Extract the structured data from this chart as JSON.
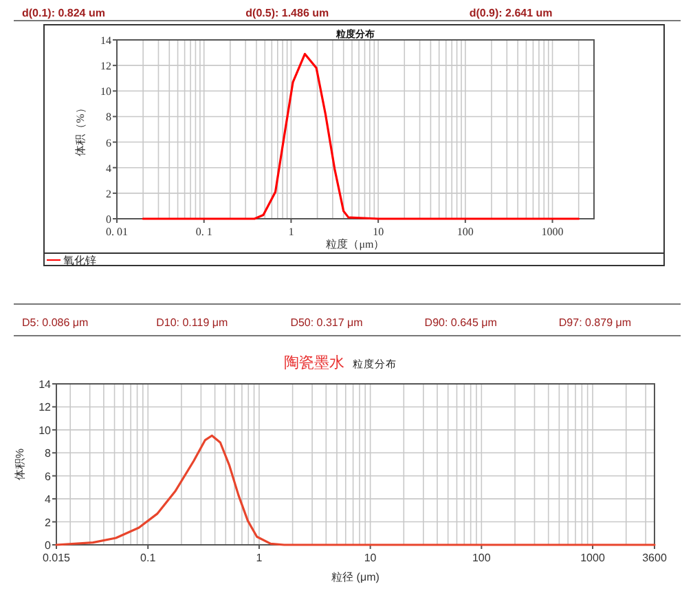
{
  "chart_data": [
    {
      "type": "line",
      "title": "粒度分布",
      "xlabel": "粒度（μm）",
      "ylabel": "体积（%）",
      "log": "x",
      "grid": true,
      "legend": "bottom left",
      "annotations": [
        "d(0.1): 0.824 um",
        "d(0.5): 1.486 um",
        "d(0.9): 2.641 um"
      ],
      "xlim": [
        0.01,
        3000
      ],
      "xticks": [
        {
          "value": 0.01,
          "label": "0. 01"
        },
        {
          "value": 0.1,
          "label": "0. 1"
        },
        1,
        10,
        100,
        1000
      ],
      "ylim": [
        0,
        14
      ],
      "yticks": [
        0,
        2,
        4,
        6,
        8,
        10,
        12,
        14
      ],
      "series": [
        {
          "name": "氧化锌",
          "color": "#ff0000",
          "x": [
            0.02,
            0.1,
            0.38,
            0.48,
            0.66,
            0.83,
            1.05,
            1.44,
            1.95,
            2.48,
            3.16,
            4.0,
            4.56,
            10,
            100,
            2000
          ],
          "values": [
            0,
            0,
            0,
            0.3,
            2.1,
            6.4,
            10.7,
            12.9,
            11.8,
            8.2,
            3.9,
            0.6,
            0.1,
            0,
            0,
            0
          ]
        }
      ]
    },
    {
      "type": "line",
      "title": "陶瓷墨水",
      "subtitle": "粒度分布",
      "xlabel": "粒径 (μm)",
      "ylabel": "体积%",
      "log": "x",
      "grid": true,
      "annotations": [
        "D5: 0.086 μm",
        "D10: 0.119 μm",
        "D50: 0.317 μm",
        "D90: 0.645 μm",
        "D97: 0.879 μm"
      ],
      "xlim": [
        0.015,
        3600
      ],
      "xticks": [
        0.015,
        0.1,
        1,
        10,
        100,
        1000,
        3600
      ],
      "ylim": [
        0,
        14
      ],
      "yticks": [
        0,
        2,
        4,
        6,
        8,
        10,
        12,
        14
      ],
      "series": [
        {
          "color": "#e8452c",
          "x": [
            0.015,
            0.032,
            0.0515,
            0.083,
            0.121,
            0.177,
            0.258,
            0.326,
            0.376,
            0.447,
            0.54,
            0.653,
            0.79,
            0.955,
            1.27,
            1.68,
            10,
            100,
            3600
          ],
          "values": [
            0,
            0.2,
            0.6,
            1.5,
            2.7,
            4.7,
            7.3,
            9.1,
            9.5,
            8.9,
            6.9,
            4.3,
            2.1,
            0.7,
            0.1,
            0,
            0,
            0,
            0
          ]
        }
      ]
    }
  ]
}
